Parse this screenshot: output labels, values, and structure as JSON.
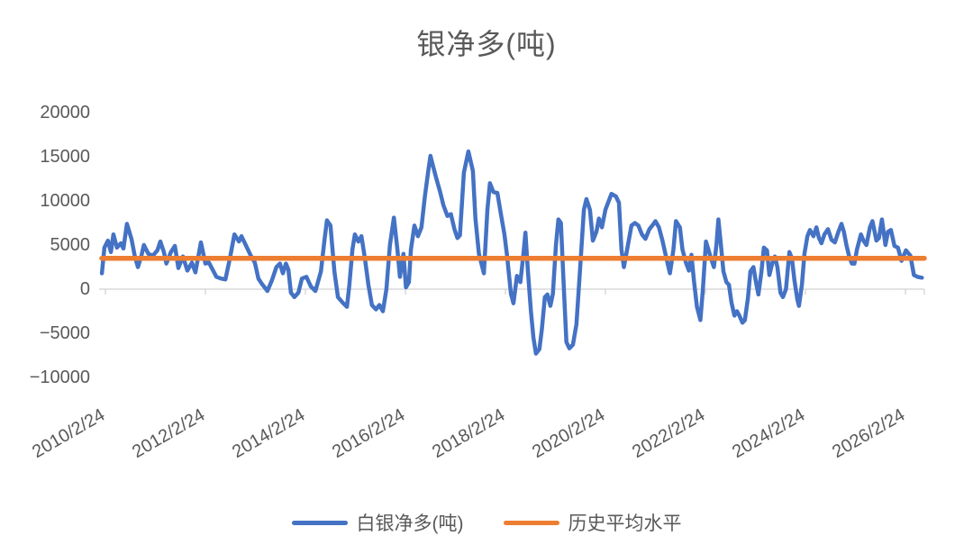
{
  "title": "银净多(吨)",
  "colors": {
    "series_blue": "#4472C4",
    "average_orange": "#ED7D31",
    "text_gray": "#595959",
    "axis_gray": "#D9D9D9",
    "background": "#FFFFFF"
  },
  "legend": [
    {
      "label": "白银净多(吨)",
      "color": "#4472C4"
    },
    {
      "label": "历史平均水平",
      "color": "#ED7D31"
    }
  ],
  "chart_data": {
    "type": "line",
    "title": "银净多(吨)",
    "legend_position": "bottom",
    "grid": "zero-axis-line-only",
    "x_axis": {
      "tick_labels": [
        "2010/2/24",
        "2012/2/24",
        "2014/2/24",
        "2016/2/24",
        "2018/2/24",
        "2020/2/24",
        "2022/2/24",
        "2024/2/24",
        "2026/2/24"
      ],
      "tick_years": [
        2010.15,
        2012.15,
        2014.15,
        2016.15,
        2018.15,
        2020.15,
        2022.15,
        2024.15,
        2026.15
      ],
      "rotation_deg": -30
    },
    "y_axis": {
      "tick_labels": [
        "20000",
        "15000",
        "10000",
        "5000",
        "0",
        "−5000",
        "−10000"
      ],
      "tick_values": [
        20000,
        15000,
        10000,
        5000,
        0,
        -5000,
        -10000
      ],
      "range": [
        -10000,
        20000
      ]
    },
    "series": [
      {
        "name": "白银净多(吨)",
        "type": "line",
        "color": "#4472C4",
        "points": [
          [
            2010.08,
            1800
          ],
          [
            2010.13,
            4700
          ],
          [
            2010.2,
            5500
          ],
          [
            2010.26,
            4200
          ],
          [
            2010.31,
            6200
          ],
          [
            2010.38,
            4700
          ],
          [
            2010.46,
            5200
          ],
          [
            2010.51,
            4600
          ],
          [
            2010.58,
            7400
          ],
          [
            2010.67,
            5700
          ],
          [
            2010.74,
            3700
          ],
          [
            2010.8,
            2500
          ],
          [
            2010.87,
            3800
          ],
          [
            2010.92,
            5000
          ],
          [
            2011.01,
            4000
          ],
          [
            2011.1,
            3800
          ],
          [
            2011.19,
            4400
          ],
          [
            2011.25,
            5400
          ],
          [
            2011.32,
            4200
          ],
          [
            2011.37,
            2900
          ],
          [
            2011.46,
            4200
          ],
          [
            2011.54,
            4900
          ],
          [
            2011.61,
            2400
          ],
          [
            2011.7,
            3700
          ],
          [
            2011.79,
            2100
          ],
          [
            2011.88,
            3000
          ],
          [
            2011.95,
            1900
          ],
          [
            2012.06,
            5300
          ],
          [
            2012.15,
            2900
          ],
          [
            2012.22,
            3000
          ],
          [
            2012.37,
            1400
          ],
          [
            2012.46,
            1200
          ],
          [
            2012.55,
            1100
          ],
          [
            2012.64,
            3500
          ],
          [
            2012.73,
            6200
          ],
          [
            2012.82,
            5400
          ],
          [
            2012.87,
            6000
          ],
          [
            2012.94,
            5200
          ],
          [
            2013.05,
            3900
          ],
          [
            2013.14,
            3000
          ],
          [
            2013.21,
            1200
          ],
          [
            2013.28,
            600
          ],
          [
            2013.39,
            -200
          ],
          [
            2013.48,
            1000
          ],
          [
            2013.57,
            2500
          ],
          [
            2013.64,
            2900
          ],
          [
            2013.7,
            1800
          ],
          [
            2013.76,
            2900
          ],
          [
            2013.81,
            2200
          ],
          [
            2013.86,
            -400
          ],
          [
            2013.93,
            -900
          ],
          [
            2014.01,
            -400
          ],
          [
            2014.08,
            1200
          ],
          [
            2014.17,
            1400
          ],
          [
            2014.26,
            300
          ],
          [
            2014.35,
            -200
          ],
          [
            2014.46,
            2000
          ],
          [
            2014.53,
            5500
          ],
          [
            2014.58,
            7800
          ],
          [
            2014.65,
            7200
          ],
          [
            2014.73,
            2000
          ],
          [
            2014.8,
            -900
          ],
          [
            2014.89,
            -1500
          ],
          [
            2014.98,
            -2000
          ],
          [
            2015.03,
            500
          ],
          [
            2015.09,
            4500
          ],
          [
            2015.14,
            6200
          ],
          [
            2015.21,
            5400
          ],
          [
            2015.27,
            6000
          ],
          [
            2015.34,
            3500
          ],
          [
            2015.41,
            500
          ],
          [
            2015.48,
            -1800
          ],
          [
            2015.56,
            -2300
          ],
          [
            2015.63,
            -1800
          ],
          [
            2015.7,
            -2500
          ],
          [
            2015.77,
            0
          ],
          [
            2015.84,
            5000
          ],
          [
            2015.92,
            8100
          ],
          [
            2015.99,
            4500
          ],
          [
            2016.04,
            1400
          ],
          [
            2016.11,
            4000
          ],
          [
            2016.16,
            200
          ],
          [
            2016.22,
            800
          ],
          [
            2016.26,
            4500
          ],
          [
            2016.33,
            7200
          ],
          [
            2016.4,
            6000
          ],
          [
            2016.47,
            7000
          ],
          [
            2016.54,
            10500
          ],
          [
            2016.61,
            13500
          ],
          [
            2016.65,
            15100
          ],
          [
            2016.7,
            14000
          ],
          [
            2016.77,
            12500
          ],
          [
            2016.84,
            11100
          ],
          [
            2016.91,
            9500
          ],
          [
            2016.99,
            8300
          ],
          [
            2017.06,
            8500
          ],
          [
            2017.13,
            6800
          ],
          [
            2017.19,
            5800
          ],
          [
            2017.24,
            6100
          ],
          [
            2017.32,
            13200
          ],
          [
            2017.41,
            15600
          ],
          [
            2017.5,
            13400
          ],
          [
            2017.55,
            8000
          ],
          [
            2017.62,
            4000
          ],
          [
            2017.72,
            1800
          ],
          [
            2017.79,
            9000
          ],
          [
            2017.84,
            12000
          ],
          [
            2017.91,
            11000
          ],
          [
            2017.99,
            10900
          ],
          [
            2018.06,
            8500
          ],
          [
            2018.13,
            6200
          ],
          [
            2018.18,
            3900
          ],
          [
            2018.26,
            -500
          ],
          [
            2018.31,
            -1600
          ],
          [
            2018.38,
            1500
          ],
          [
            2018.45,
            800
          ],
          [
            2018.51,
            4000
          ],
          [
            2018.55,
            6400
          ],
          [
            2018.6,
            2000
          ],
          [
            2018.66,
            -2500
          ],
          [
            2018.71,
            -5500
          ],
          [
            2018.76,
            -7300
          ],
          [
            2018.83,
            -6800
          ],
          [
            2018.88,
            -4500
          ],
          [
            2018.94,
            -900
          ],
          [
            2018.99,
            -600
          ],
          [
            2019.05,
            -1900
          ],
          [
            2019.1,
            -500
          ],
          [
            2019.16,
            5000
          ],
          [
            2019.21,
            7900
          ],
          [
            2019.26,
            7500
          ],
          [
            2019.32,
            0
          ],
          [
            2019.37,
            -6000
          ],
          [
            2019.43,
            -6700
          ],
          [
            2019.5,
            -6300
          ],
          [
            2019.57,
            -4000
          ],
          [
            2019.64,
            2000
          ],
          [
            2019.72,
            9000
          ],
          [
            2019.77,
            10200
          ],
          [
            2019.84,
            9000
          ],
          [
            2019.9,
            5500
          ],
          [
            2019.97,
            6500
          ],
          [
            2020.02,
            8000
          ],
          [
            2020.08,
            7000
          ],
          [
            2020.15,
            9000
          ],
          [
            2020.27,
            10800
          ],
          [
            2020.36,
            10500
          ],
          [
            2020.42,
            9800
          ],
          [
            2020.47,
            4500
          ],
          [
            2020.52,
            2500
          ],
          [
            2020.6,
            5000
          ],
          [
            2020.67,
            7200
          ],
          [
            2020.74,
            7500
          ],
          [
            2020.81,
            7200
          ],
          [
            2020.88,
            6200
          ],
          [
            2020.95,
            5700
          ],
          [
            2021.03,
            6800
          ],
          [
            2021.1,
            7300
          ],
          [
            2021.15,
            7700
          ],
          [
            2021.22,
            7000
          ],
          [
            2021.29,
            5500
          ],
          [
            2021.37,
            3500
          ],
          [
            2021.44,
            1800
          ],
          [
            2021.51,
            4500
          ],
          [
            2021.56,
            7700
          ],
          [
            2021.64,
            7000
          ],
          [
            2021.69,
            4500
          ],
          [
            2021.76,
            3000
          ],
          [
            2021.82,
            2100
          ],
          [
            2021.87,
            3900
          ],
          [
            2021.92,
            1000
          ],
          [
            2021.98,
            -2000
          ],
          [
            2022.05,
            -3500
          ],
          [
            2022.1,
            0
          ],
          [
            2022.16,
            5400
          ],
          [
            2022.21,
            4500
          ],
          [
            2022.26,
            3500
          ],
          [
            2022.32,
            2500
          ],
          [
            2022.37,
            5000
          ],
          [
            2022.41,
            7900
          ],
          [
            2022.46,
            5000
          ],
          [
            2022.51,
            2000
          ],
          [
            2022.57,
            800
          ],
          [
            2022.62,
            500
          ],
          [
            2022.67,
            -1500
          ],
          [
            2022.73,
            -3000
          ],
          [
            2022.78,
            -2500
          ],
          [
            2022.83,
            -3000
          ],
          [
            2022.89,
            -3800
          ],
          [
            2022.94,
            -3500
          ],
          [
            2023.0,
            -1000
          ],
          [
            2023.05,
            2000
          ],
          [
            2023.11,
            2500
          ],
          [
            2023.16,
            800
          ],
          [
            2023.21,
            -600
          ],
          [
            2023.27,
            2000
          ],
          [
            2023.32,
            4700
          ],
          [
            2023.38,
            4400
          ],
          [
            2023.43,
            1600
          ],
          [
            2023.49,
            3000
          ],
          [
            2023.54,
            3700
          ],
          [
            2023.59,
            2500
          ],
          [
            2023.65,
            -400
          ],
          [
            2023.7,
            -900
          ],
          [
            2023.76,
            0
          ],
          [
            2023.83,
            4200
          ],
          [
            2023.88,
            3500
          ],
          [
            2023.93,
            1000
          ],
          [
            2023.99,
            -1200
          ],
          [
            2024.02,
            -1900
          ],
          [
            2024.08,
            500
          ],
          [
            2024.13,
            4000
          ],
          [
            2024.19,
            6000
          ],
          [
            2024.24,
            6700
          ],
          [
            2024.31,
            6000
          ],
          [
            2024.37,
            7000
          ],
          [
            2024.42,
            5800
          ],
          [
            2024.47,
            5200
          ],
          [
            2024.53,
            6200
          ],
          [
            2024.6,
            6800
          ],
          [
            2024.67,
            5600
          ],
          [
            2024.74,
            5300
          ],
          [
            2024.81,
            6500
          ],
          [
            2024.87,
            7400
          ],
          [
            2024.92,
            6500
          ],
          [
            2024.97,
            5000
          ],
          [
            2025.03,
            3600
          ],
          [
            2025.08,
            2900
          ],
          [
            2025.13,
            2900
          ],
          [
            2025.18,
            4500
          ],
          [
            2025.26,
            6200
          ],
          [
            2025.31,
            5500
          ],
          [
            2025.37,
            5000
          ],
          [
            2025.44,
            7000
          ],
          [
            2025.49,
            7700
          ],
          [
            2025.57,
            5500
          ],
          [
            2025.62,
            5800
          ],
          [
            2025.68,
            7900
          ],
          [
            2025.75,
            5000
          ],
          [
            2025.8,
            6500
          ],
          [
            2025.86,
            6700
          ],
          [
            2025.93,
            4900
          ],
          [
            2026.0,
            4700
          ],
          [
            2026.07,
            3200
          ],
          [
            2026.16,
            4400
          ],
          [
            2026.25,
            3800
          ],
          [
            2026.32,
            1600
          ],
          [
            2026.39,
            1400
          ],
          [
            2026.48,
            1300
          ]
        ]
      },
      {
        "name": "历史平均水平",
        "type": "horizontal-line",
        "color": "#ED7D31",
        "value": 3500
      }
    ]
  }
}
